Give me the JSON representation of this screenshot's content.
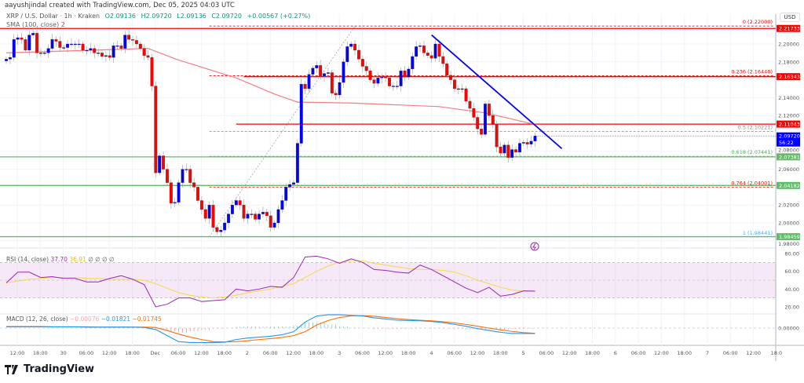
{
  "header": {
    "credit": "aayushjindal created with TradingView.com, Dec 05, 2025 04:03 UTC"
  },
  "legend": {
    "symbol": "XRP / U.S. Dollar · 1h · Kraken",
    "open": "O2.09136",
    "high": "H2.09720",
    "low": "L2.09136",
    "close": "C2.09720",
    "change": "+0.00567 (+0.27%)"
  },
  "sma_legend": {
    "label": "SMA (100, close)",
    "value": "2"
  },
  "rsi_legend": {
    "label": "RSI (14, close)",
    "rsi": "37.70",
    "ma": "36.91",
    "rest": "∅ ∅ ∅ ∅"
  },
  "macd_legend": {
    "label": "MACD (12, 26, close)",
    "hist": "−0.00076",
    "macd": "−0.01821",
    "signal": "−0.01745"
  },
  "currency": "USD",
  "logo": "TradingView",
  "colors": {
    "up": "#0000ff",
    "down": "#ff0000",
    "sma": "#f77c80",
    "rsi": "#9c27b0",
    "rsi_ma": "#f7d84a",
    "macd": "#2196f3",
    "signal": "#ff6d00",
    "trendline": "#0000ff",
    "support": "#66bb6a",
    "resistance": "#ff0000",
    "current": "#0000ff"
  },
  "chart_data": {
    "type": "candlestick",
    "timeframe": "1h",
    "ylim": [
      1.97,
      2.23
    ],
    "closes": [
      2.183,
      2.185,
      2.205,
      2.207,
      2.205,
      2.193,
      2.21,
      2.212,
      2.19,
      2.19,
      2.19,
      2.195,
      2.205,
      2.203,
      2.196,
      2.196,
      2.2,
      2.2,
      2.2,
      2.2,
      2.193,
      2.193,
      2.195,
      2.19,
      2.19,
      2.186,
      2.187,
      2.185,
      2.198,
      2.198,
      2.195,
      2.21,
      2.205,
      2.204,
      2.2,
      2.195,
      2.187,
      2.185,
      2.153,
      2.056,
      2.075,
      2.06,
      2.045,
      2.022,
      2.023,
      2.045,
      2.06,
      2.06,
      2.045,
      2.04,
      2.025,
      2.015,
      2.005,
      2.02,
      1.995,
      1.99,
      1.992,
      2.0,
      2.01,
      2.02,
      2.025,
      2.02,
      2.005,
      2.01,
      2.01,
      2.004,
      2.01,
      2.012,
      2.008,
      1.995,
      2.0,
      2.015,
      2.025,
      2.04,
      2.043,
      2.045,
      2.089,
      2.155,
      2.15,
      2.166,
      2.173,
      2.176,
      2.164,
      2.167,
      2.168,
      2.145,
      2.143,
      2.157,
      2.18,
      2.197,
      2.2,
      2.193,
      2.183,
      2.175,
      2.17,
      2.16,
      2.156,
      2.162,
      2.163,
      2.162,
      2.153,
      2.153,
      2.153,
      2.17,
      2.163,
      2.172,
      2.186,
      2.197,
      2.198,
      2.19,
      2.187,
      2.184,
      2.2,
      2.186,
      2.178,
      2.165,
      2.16,
      2.15,
      2.15,
      2.15,
      2.136,
      2.128,
      2.118,
      2.105,
      2.099,
      2.133,
      2.12,
      2.11,
      2.085,
      2.078,
      2.087,
      2.073,
      2.082,
      2.079,
      2.089,
      2.09,
      2.088,
      2.09136,
      2.0972
    ],
    "sma100": [
      [
        0,
        2.19
      ],
      [
        37,
        2.195
      ],
      [
        45,
        2.182
      ],
      [
        60,
        2.162
      ],
      [
        70,
        2.144
      ],
      [
        76,
        2.135
      ],
      [
        90,
        2.134
      ],
      [
        113,
        2.13
      ],
      [
        125,
        2.123
      ],
      [
        138,
        2.11
      ]
    ],
    "price_ticks": [
      "2.20000",
      "2.18000",
      "2.14000",
      "2.12000",
      "2.08000",
      "2.06000",
      "2.02000",
      "2.00000",
      "1.98000"
    ],
    "price_tags": [
      {
        "value": "2.21733",
        "kind": "resistance"
      },
      {
        "value": "2.16343",
        "kind": "resistance"
      },
      {
        "value": "2.11043",
        "kind": "resistance"
      },
      {
        "value": "2.09720",
        "sub": "56:22",
        "kind": "current"
      },
      {
        "value": "2.07381",
        "kind": "support"
      },
      {
        "value": "2.04182",
        "kind": "support"
      },
      {
        "value": "1.98459",
        "kind": "support"
      }
    ],
    "fib_levels": [
      {
        "label": "0 (2.22000)",
        "price": 2.22,
        "color": "#ff0000"
      },
      {
        "label": "0.236 (2.16440)",
        "price": 2.1644,
        "color": "#ff0000"
      },
      {
        "label": "0.5 (2.10221)",
        "price": 2.10221,
        "color": "#888888"
      },
      {
        "label": "0.618 (2.07441)",
        "price": 2.07441,
        "color": "#4caf50"
      },
      {
        "label": "0.764 (2.04001)",
        "price": 2.04001,
        "color": "#ff0000"
      },
      {
        "label": "1 (1.98441)",
        "price": 1.98441,
        "color": "#29b6f6"
      }
    ],
    "trendline": [
      [
        111,
        2.21
      ],
      [
        145,
        2.083
      ]
    ],
    "x_ticks": [
      "12:00",
      "18:00",
      "30",
      "06:00",
      "12:00",
      "18:00",
      "Dec",
      "06:00",
      "12:00",
      "18:00",
      "2",
      "06:00",
      "12:00",
      "18:00",
      "3",
      "06:00",
      "12:00",
      "18:00",
      "4",
      "06:00",
      "12:00",
      "18:00",
      "5",
      "06:00",
      "12:00",
      "18:00",
      "6",
      "06:00",
      "12:00",
      "18:00",
      "7",
      "06:00",
      "12:00",
      "18:0"
    ],
    "rsi": {
      "ticks": [
        "80.00",
        "60.00",
        "40.00",
        "20.00"
      ],
      "band": [
        30,
        70
      ],
      "values": [
        47,
        59,
        59,
        53,
        54,
        52,
        52,
        48,
        48,
        52,
        55,
        51,
        45,
        20,
        23,
        30,
        30,
        26,
        27,
        28,
        40,
        38,
        40,
        43,
        42,
        53,
        76,
        77,
        74,
        69,
        74,
        70,
        62,
        61,
        59,
        58,
        67,
        62,
        55,
        48,
        41,
        36,
        42,
        32,
        34,
        38,
        37.7
      ],
      "ma": [
        47,
        49,
        51,
        52,
        53,
        53,
        53,
        52,
        52,
        51,
        51,
        51,
        50,
        46,
        41,
        36,
        33,
        31,
        30,
        31,
        33,
        36,
        38,
        40,
        43,
        46,
        53,
        60,
        66,
        70,
        72,
        72,
        69,
        67,
        65,
        63,
        62,
        62,
        61,
        59,
        55,
        50,
        46,
        42,
        39,
        38,
        36.91
      ]
    },
    "macd": {
      "ticks": [
        "0.00000"
      ],
      "macd": [
        0.005,
        0.005,
        0.005,
        0.005,
        0.004,
        0.004,
        0.004,
        0.003,
        0.003,
        0.003,
        0.003,
        0.003,
        0.002,
        -0.005,
        -0.025,
        -0.045,
        -0.048,
        -0.048,
        -0.048,
        -0.047,
        -0.038,
        -0.033,
        -0.03,
        -0.027,
        -0.022,
        -0.012,
        0.02,
        0.04,
        0.044,
        0.044,
        0.042,
        0.04,
        0.034,
        0.03,
        0.026,
        0.025,
        0.024,
        0.022,
        0.018,
        0.012,
        0.006,
        -0.002,
        -0.008,
        -0.014,
        -0.018,
        -0.018,
        -0.01821
      ],
      "signal": [
        0.004,
        0.004,
        0.004,
        0.004,
        0.004,
        0.004,
        0.004,
        0.004,
        0.003,
        0.003,
        0.003,
        0.003,
        0.003,
        0.002,
        -0.008,
        -0.02,
        -0.03,
        -0.038,
        -0.045,
        -0.046,
        -0.045,
        -0.042,
        -0.038,
        -0.035,
        -0.031,
        -0.025,
        -0.012,
        0.01,
        0.025,
        0.035,
        0.04,
        0.041,
        0.039,
        0.035,
        0.031,
        0.028,
        0.026,
        0.024,
        0.021,
        0.017,
        0.012,
        0.006,
        0.0,
        -0.006,
        -0.011,
        -0.015,
        -0.01745
      ]
    }
  }
}
